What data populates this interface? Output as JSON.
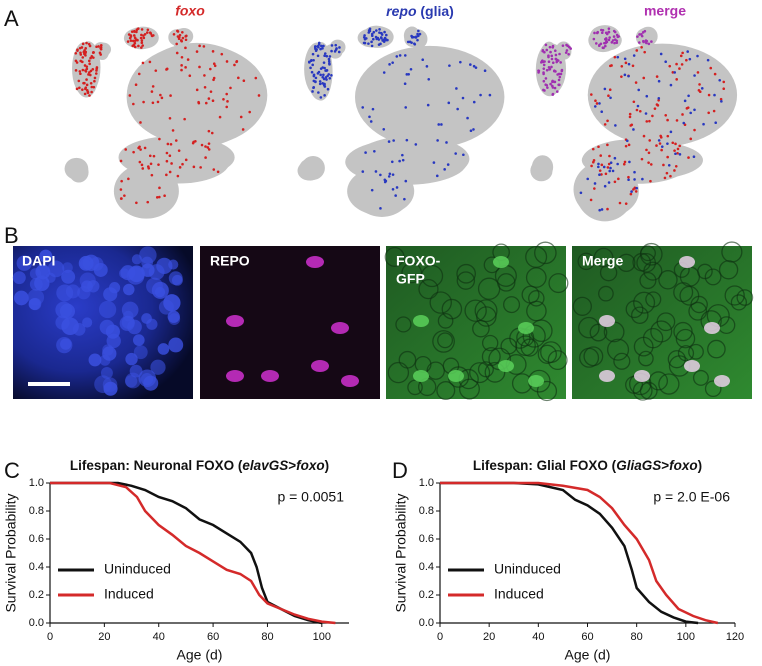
{
  "panels": {
    "letters": [
      "A",
      "B",
      "C",
      "D"
    ],
    "a_titles": {
      "foxo": "foxo",
      "repo": "repo",
      "glia": "(glia)",
      "merge": "merge"
    },
    "b_labels": [
      "DAPI",
      "REPO",
      "FOXO-",
      "GFP",
      "Merge"
    ]
  },
  "chart_data": [
    {
      "type": "line",
      "title": [
        "Lifespan: Neuronal FOXO (",
        "elavGS",
        ">",
        "foxo",
        ")"
      ],
      "x_label": "Age (d)",
      "y_label": "Survival Probability",
      "annotation": "p = 0.0051",
      "legend": "lower left",
      "xlim": [
        0,
        110
      ],
      "xticks": [
        0,
        20,
        40,
        60,
        80,
        100
      ],
      "ylim": [
        0,
        1
      ],
      "yticks": [
        {
          "value": 0,
          "label": "0.0"
        },
        {
          "value": 0.2,
          "label": "0.2"
        },
        {
          "value": 0.4,
          "label": "0.4"
        },
        {
          "value": 0.6,
          "label": "0.6"
        },
        {
          "value": 0.8,
          "label": "0.8"
        },
        {
          "value": 1,
          "label": "1.0"
        }
      ],
      "series": [
        {
          "name": "Uninduced",
          "color": "#111111",
          "x": [
            0,
            25,
            30,
            35,
            40,
            45,
            50,
            55,
            60,
            65,
            70,
            74,
            76,
            78,
            80,
            85,
            90,
            95,
            100
          ],
          "values": [
            1,
            1,
            0.98,
            0.95,
            0.9,
            0.87,
            0.82,
            0.74,
            0.7,
            0.64,
            0.58,
            0.5,
            0.4,
            0.25,
            0.15,
            0.1,
            0.05,
            0.02,
            0
          ]
        },
        {
          "name": "Induced",
          "color": "#d42a2a",
          "x": [
            0,
            22,
            28,
            32,
            35,
            40,
            45,
            50,
            55,
            60,
            65,
            70,
            74,
            77,
            80,
            85,
            90,
            95,
            100,
            105
          ],
          "values": [
            1,
            1,
            0.97,
            0.9,
            0.8,
            0.7,
            0.63,
            0.55,
            0.5,
            0.44,
            0.38,
            0.35,
            0.3,
            0.2,
            0.14,
            0.1,
            0.06,
            0.03,
            0.01,
            0
          ]
        }
      ]
    },
    {
      "type": "line",
      "title": [
        "Lifespan: Glial FOXO (",
        "GliaGS",
        ">",
        "foxo",
        ")"
      ],
      "x_label": "Age (d)",
      "y_label": "Survival Probability",
      "annotation": "p = 2.0 E-06",
      "legend": "lower left",
      "xlim": [
        0,
        120
      ],
      "xticks": [
        0,
        20,
        40,
        60,
        80,
        100,
        120
      ],
      "ylim": [
        0,
        1
      ],
      "yticks": [
        {
          "value": 0,
          "label": "0.0"
        },
        {
          "value": 0.2,
          "label": "0.2"
        },
        {
          "value": 0.4,
          "label": "0.4"
        },
        {
          "value": 0.6,
          "label": "0.6"
        },
        {
          "value": 0.8,
          "label": "0.8"
        },
        {
          "value": 1,
          "label": "1.0"
        }
      ],
      "series": [
        {
          "name": "Uninduced",
          "color": "#111111",
          "x": [
            0,
            30,
            40,
            50,
            55,
            60,
            65,
            70,
            75,
            78,
            80,
            85,
            90,
            95,
            100,
            105
          ],
          "values": [
            1,
            1,
            0.99,
            0.95,
            0.88,
            0.84,
            0.78,
            0.68,
            0.55,
            0.38,
            0.25,
            0.15,
            0.08,
            0.04,
            0.01,
            0
          ]
        },
        {
          "name": "Induced",
          "color": "#d42a2a",
          "x": [
            0,
            40,
            50,
            60,
            65,
            70,
            75,
            80,
            85,
            88,
            92,
            97,
            103,
            108,
            113
          ],
          "values": [
            1,
            1,
            0.98,
            0.95,
            0.9,
            0.82,
            0.7,
            0.6,
            0.45,
            0.3,
            0.2,
            0.1,
            0.05,
            0.02,
            0
          ]
        }
      ]
    }
  ]
}
